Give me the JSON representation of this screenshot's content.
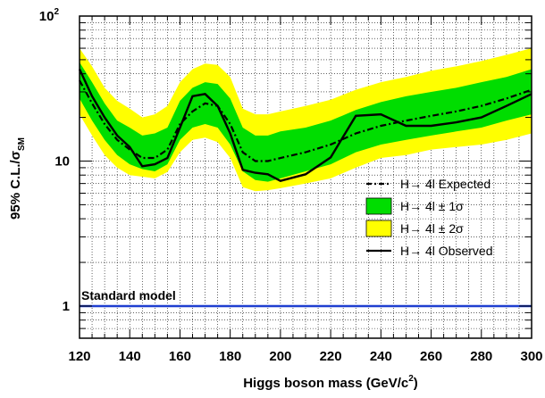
{
  "chart_data": {
    "type": "line",
    "xlabel": "Higgs boson mass (GeV/c",
    "xlabel_sup": "2",
    "xlabel_end": ")",
    "ylabel": "95% C.L./σ",
    "ylabel_sub": "SM",
    "xlim": [
      120,
      300
    ],
    "ylim": [
      0.6,
      100
    ],
    "yscale": "log",
    "grid": true,
    "x_ticks": [
      120,
      140,
      160,
      180,
      200,
      220,
      240,
      260,
      280,
      300
    ],
    "y_ticks": [
      {
        "value": 1,
        "label": "1"
      },
      {
        "value": 10,
        "label": "10"
      },
      {
        "value": 100,
        "label": "10",
        "sup": "2"
      }
    ],
    "legend_position": "right",
    "colors": {
      "band2": "#ffff00",
      "band1": "#00dd00",
      "expected": "#000000",
      "observed": "#000000",
      "standard_model": "#1f3fd0"
    },
    "x": [
      120,
      125,
      130,
      135,
      140,
      145,
      150,
      155,
      160,
      165,
      170,
      175,
      180,
      185,
      190,
      195,
      200,
      210,
      220,
      230,
      240,
      250,
      260,
      270,
      280,
      290,
      300
    ],
    "series": [
      {
        "name": "H→ 4l Expected",
        "kind": "expected",
        "values": [
          36,
          25,
          18,
          14,
          12,
          10.5,
          10.5,
          12,
          18,
          22,
          25,
          24,
          18,
          11.5,
          10,
          10,
          10.5,
          11.5,
          13,
          15.5,
          17.5,
          19,
          20.5,
          22,
          24,
          27,
          31
        ]
      },
      {
        "name": "H→ 4l ± 1σ",
        "kind": "band1",
        "lower": [
          27,
          19,
          14,
          11,
          9.5,
          8.8,
          8.5,
          9.5,
          14,
          17,
          18,
          17,
          13,
          8.5,
          7.4,
          7.2,
          7.6,
          8.5,
          9.5,
          11.5,
          13,
          14,
          15,
          16,
          17,
          19,
          21
        ],
        "upper": [
          48,
          35,
          25,
          19,
          17,
          15,
          15.5,
          17,
          26,
          32,
          35,
          34,
          27,
          17,
          15,
          15,
          16,
          17,
          19,
          22.5,
          25.5,
          28,
          30,
          32,
          35,
          38,
          43
        ]
      },
      {
        "name": "H→ 4l ± 2σ",
        "kind": "band2",
        "lower": [
          21,
          15,
          11,
          9,
          8,
          7.8,
          7.6,
          8.4,
          11.5,
          14,
          14.5,
          13.5,
          10.5,
          6.6,
          6.2,
          6.3,
          6.5,
          7,
          7.6,
          9,
          10.5,
          11,
          12,
          12.5,
          13,
          14,
          15.5
        ],
        "upper": [
          60,
          45,
          32,
          26,
          23,
          20,
          21,
          24,
          35,
          43,
          47,
          46,
          38,
          23,
          21,
          21,
          22,
          24,
          26.5,
          31,
          35,
          38,
          42,
          45,
          49,
          54,
          60
        ]
      },
      {
        "name": "H→ 4l Observed",
        "kind": "observed",
        "values": [
          43,
          28,
          20,
          15,
          12.5,
          9.2,
          9.5,
          10.5,
          17,
          28,
          29,
          24,
          15.5,
          8.7,
          8.3,
          8.1,
          7.3,
          8.1,
          10.6,
          20.5,
          21,
          17.5,
          17.5,
          18.5,
          20,
          24,
          29
        ]
      }
    ],
    "annotation": {
      "label": "Standard model",
      "y": 1
    }
  }
}
